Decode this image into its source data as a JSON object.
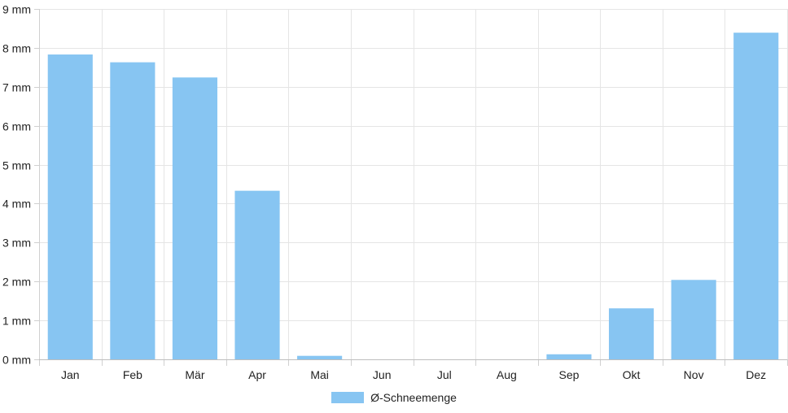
{
  "chart_data": {
    "type": "bar",
    "categories": [
      "Jan",
      "Feb",
      "Mär",
      "Apr",
      "Mai",
      "Jun",
      "Jul",
      "Aug",
      "Sep",
      "Okt",
      "Nov",
      "Dez"
    ],
    "series": [
      {
        "name": "Ø-Schneemenge",
        "values": [
          7.83,
          7.63,
          7.24,
          4.33,
          0.09,
          0,
          0,
          0,
          0.13,
          1.31,
          2.04,
          8.39
        ],
        "color": "#87c5f2"
      }
    ],
    "y_tick_labels": [
      "0 mm",
      "1 mm",
      "2 mm",
      "3 mm",
      "4 mm",
      "5 mm",
      "6 mm",
      "7 mm",
      "8 mm",
      "9 mm"
    ],
    "ylim": [
      0,
      9
    ],
    "grid": true,
    "legend_position": "bottom-center"
  }
}
